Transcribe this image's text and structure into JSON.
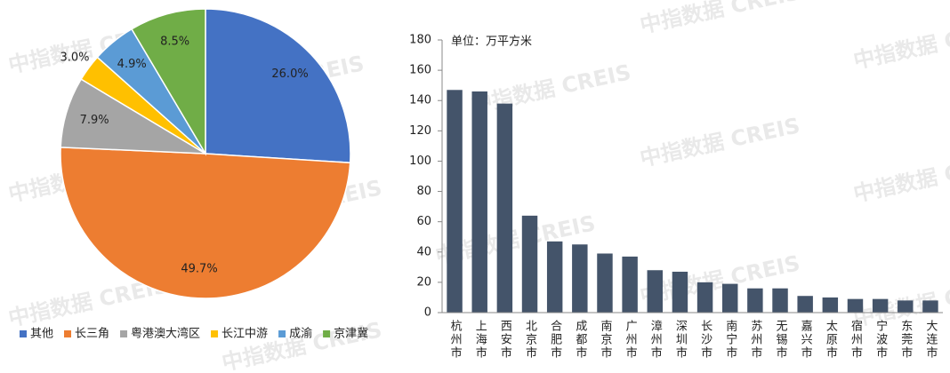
{
  "watermark": "中指数据 CREIS",
  "chart_data": [
    {
      "type": "pie",
      "categories": [
        "其他",
        "长三角",
        "粤港澳大湾区",
        "长江中游",
        "成渝",
        "京津冀"
      ],
      "values": [
        26.0,
        49.7,
        7.9,
        3.0,
        4.9,
        8.5
      ],
      "value_labels": [
        "26.0%",
        "49.7%",
        "7.9%",
        "3.0%",
        "4.9%",
        "8.5%"
      ],
      "colors": [
        "#4472c4",
        "#ed7d31",
        "#a5a5a5",
        "#ffc000",
        "#5b9bd5",
        "#70ad47"
      ],
      "legend": "bottom"
    },
    {
      "type": "bar",
      "annotation": "单位：万平方米",
      "categories": [
        "杭州市",
        "上海市",
        "西安市",
        "北京市",
        "合肥市",
        "成都市",
        "南京市",
        "广州市",
        "漳州市",
        "深圳市",
        "长沙市",
        "南宁市",
        "苏州市",
        "无锡市",
        "嘉兴市",
        "太原市",
        "宿州市",
        "宁波市",
        "东莞市",
        "大连市"
      ],
      "values": [
        147,
        146,
        138,
        64,
        47,
        45,
        39,
        37,
        28,
        27,
        20,
        19,
        16,
        16,
        11,
        10,
        9,
        9,
        8,
        8
      ],
      "color": "#44546a",
      "ylim": [
        0,
        180
      ],
      "yticks": [
        0,
        20,
        40,
        60,
        80,
        100,
        120,
        140,
        160,
        180
      ],
      "grid": false
    }
  ]
}
